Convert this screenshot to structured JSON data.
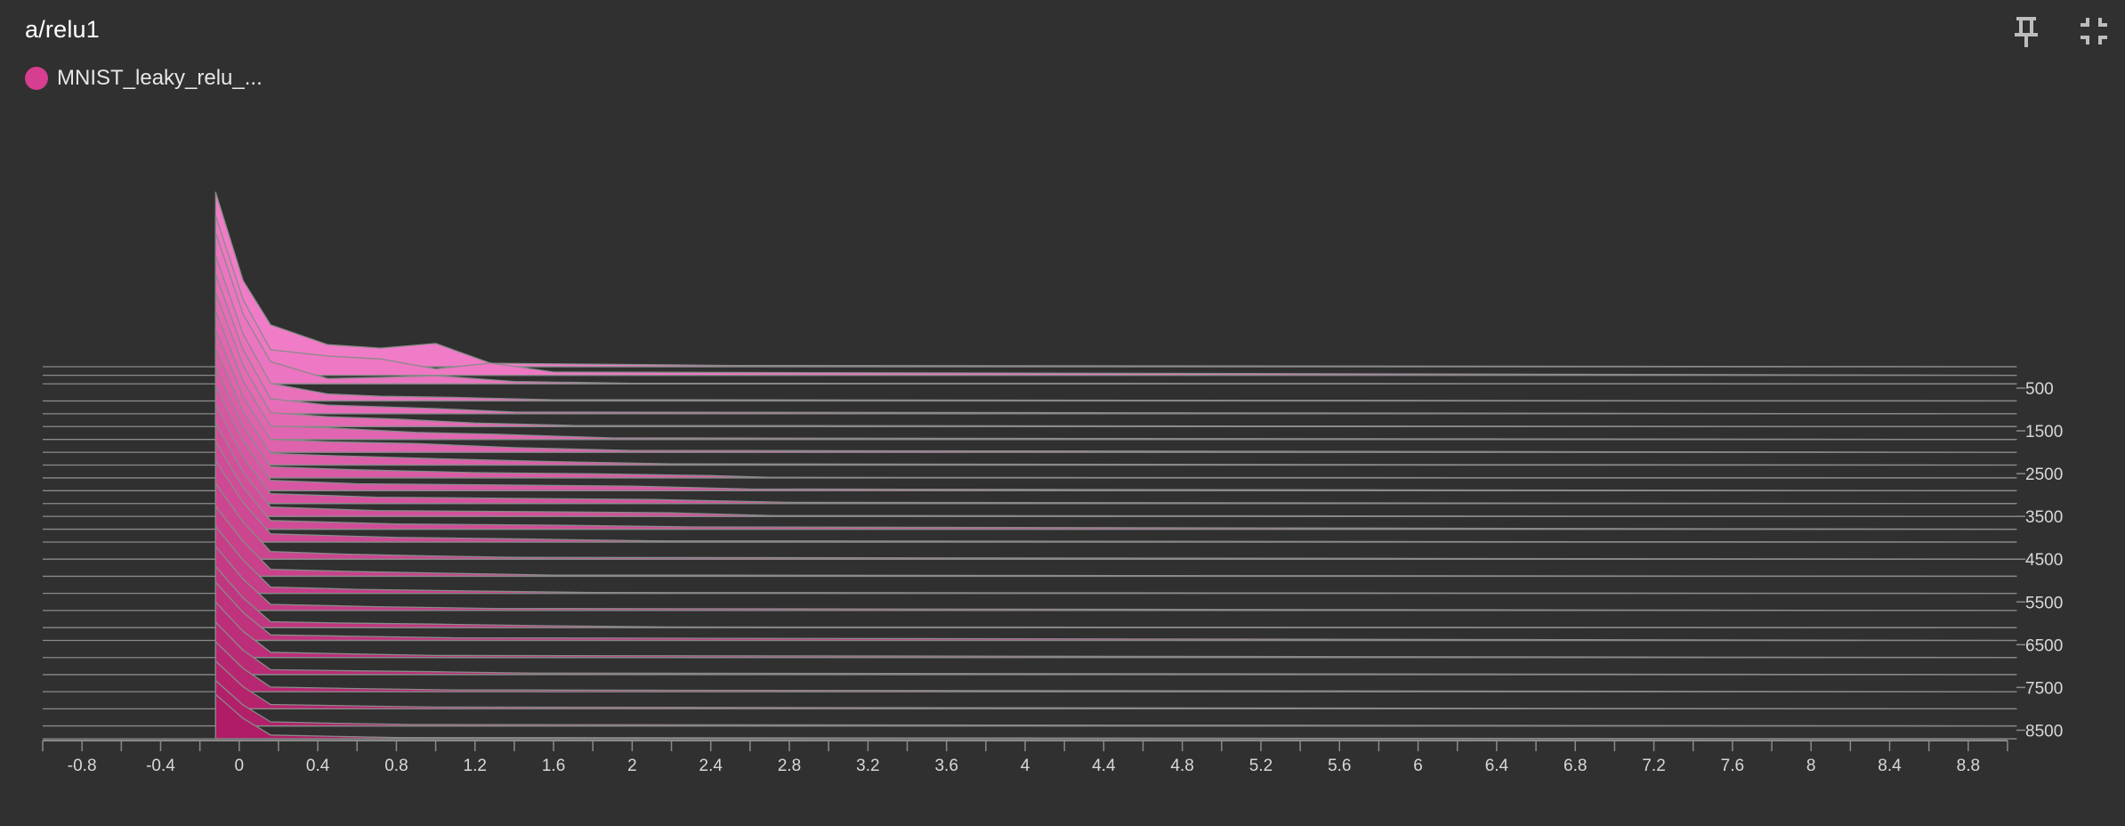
{
  "card": {
    "title": "a/relu1",
    "legend_label": "MNIST_leaky_relu_...",
    "legend_color": "#d63e8f"
  },
  "toolbar": {
    "pin_icon": "pin-icon",
    "fullscreen_exit_icon": "fullscreen-exit-icon"
  },
  "chart_data": {
    "type": "histogram",
    "mode": "offset",
    "xlim": [
      -1.0,
      9.0
    ],
    "x_ticks": [
      -0.8,
      -0.4,
      0,
      0.4,
      0.8,
      1.2,
      1.6,
      2,
      2.4,
      2.8,
      3.2,
      3.6,
      4,
      4.4,
      4.8,
      5.2,
      5.6,
      6,
      6.4,
      6.8,
      7.2,
      7.6,
      8,
      8.4,
      8.8
    ],
    "x_tick_labels": [
      "-0.8",
      "-0.4",
      "0",
      "0.4",
      "0.8",
      "1.2",
      "1.6",
      "2",
      "2.4",
      "2.8",
      "3.2",
      "3.6",
      "4",
      "4.4",
      "4.8",
      "5.2",
      "5.6",
      "6",
      "6.4",
      "6.8",
      "7.2",
      "7.6",
      "8",
      "8.4",
      "8.8"
    ],
    "steps_range": [
      0,
      8700
    ],
    "step_ticks": [
      500,
      1500,
      2500,
      3500,
      4500,
      5500,
      6500,
      7500,
      8500
    ],
    "step_tick_labels": [
      "500",
      "1500",
      "2500",
      "3500",
      "4500",
      "5500",
      "6500",
      "7500",
      "8500"
    ],
    "colors": {
      "back": "#f07cc7",
      "front": "#b01c66",
      "outline": "#8a8a8a"
    },
    "series": [
      {
        "step": 0,
        "points": [
          [
            -0.12,
            3000
          ],
          [
            0.02,
            1480
          ],
          [
            0.16,
            720
          ],
          [
            0.45,
            380
          ],
          [
            0.72,
            320
          ],
          [
            1.0,
            400
          ],
          [
            1.28,
            60
          ],
          [
            2.5,
            22
          ],
          [
            9.0,
            0
          ]
        ]
      },
      {
        "step": 200,
        "points": [
          [
            -0.12,
            2750
          ],
          [
            0.02,
            1300
          ],
          [
            0.16,
            440
          ],
          [
            0.45,
            330
          ],
          [
            0.72,
            280
          ],
          [
            1.0,
            110
          ],
          [
            1.28,
            210
          ],
          [
            1.6,
            55
          ],
          [
            9.0,
            0
          ]
        ]
      },
      {
        "step": 400,
        "points": [
          [
            -0.12,
            2600
          ],
          [
            0.02,
            1200
          ],
          [
            0.16,
            380
          ],
          [
            0.45,
            90
          ],
          [
            0.72,
            110
          ],
          [
            1.0,
            140
          ],
          [
            1.4,
            40
          ],
          [
            2.0,
            10
          ],
          [
            9.0,
            0
          ]
        ]
      },
      {
        "step": 800,
        "points": [
          [
            -0.12,
            2500
          ],
          [
            0.02,
            1150
          ],
          [
            0.16,
            300
          ],
          [
            0.45,
            120
          ],
          [
            0.72,
            80
          ],
          [
            1.1,
            60
          ],
          [
            1.6,
            20
          ],
          [
            9.0,
            0
          ]
        ]
      },
      {
        "step": 1100,
        "points": [
          [
            -0.12,
            2400
          ],
          [
            0.02,
            1100
          ],
          [
            0.16,
            260
          ],
          [
            0.45,
            150
          ],
          [
            0.72,
            120
          ],
          [
            1.0,
            90
          ],
          [
            1.4,
            30
          ],
          [
            9.0,
            0
          ]
        ]
      },
      {
        "step": 1400,
        "points": [
          [
            -0.12,
            2300
          ],
          [
            0.02,
            1050
          ],
          [
            0.16,
            240
          ],
          [
            0.45,
            170
          ],
          [
            0.8,
            130
          ],
          [
            1.2,
            60
          ],
          [
            1.7,
            20
          ],
          [
            9.0,
            0
          ]
        ]
      },
      {
        "step": 1700,
        "points": [
          [
            -0.12,
            2200
          ],
          [
            0.02,
            1000
          ],
          [
            0.16,
            230
          ],
          [
            0.45,
            200
          ],
          [
            0.9,
            120
          ],
          [
            1.3,
            90
          ],
          [
            1.9,
            25
          ],
          [
            9.0,
            0
          ]
        ]
      },
      {
        "step": 2000,
        "points": [
          [
            -0.12,
            2100
          ],
          [
            0.02,
            950
          ],
          [
            0.16,
            220
          ],
          [
            0.45,
            180
          ],
          [
            0.9,
            150
          ],
          [
            1.4,
            80
          ],
          [
            2.0,
            30
          ],
          [
            9.0,
            0
          ]
        ]
      },
      {
        "step": 2300,
        "points": [
          [
            -0.12,
            2000
          ],
          [
            0.02,
            920
          ],
          [
            0.16,
            200
          ],
          [
            0.5,
            160
          ],
          [
            1.0,
            110
          ],
          [
            1.6,
            60
          ],
          [
            2.2,
            20
          ],
          [
            9.0,
            0
          ]
        ]
      },
      {
        "step": 2600,
        "points": [
          [
            -0.12,
            1900
          ],
          [
            0.02,
            880
          ],
          [
            0.16,
            190
          ],
          [
            0.6,
            140
          ],
          [
            1.2,
            90
          ],
          [
            1.8,
            70
          ],
          [
            2.4,
            40
          ],
          [
            2.7,
            10
          ],
          [
            9.0,
            0
          ]
        ]
      },
      {
        "step": 2900,
        "points": [
          [
            -0.12,
            1800
          ],
          [
            0.02,
            850
          ],
          [
            0.16,
            180
          ],
          [
            0.6,
            120
          ],
          [
            1.3,
            100
          ],
          [
            2.0,
            80
          ],
          [
            2.6,
            30
          ],
          [
            9.0,
            0
          ]
        ]
      },
      {
        "step": 3200,
        "points": [
          [
            -0.12,
            1700
          ],
          [
            0.02,
            800
          ],
          [
            0.16,
            170
          ],
          [
            0.7,
            110
          ],
          [
            1.4,
            90
          ],
          [
            2.1,
            70
          ],
          [
            2.8,
            20
          ],
          [
            9.0,
            0
          ]
        ]
      },
      {
        "step": 3500,
        "points": [
          [
            -0.12,
            1600
          ],
          [
            0.02,
            760
          ],
          [
            0.16,
            160
          ],
          [
            0.7,
            100
          ],
          [
            1.5,
            80
          ],
          [
            2.2,
            60
          ],
          [
            2.7,
            15
          ],
          [
            9.0,
            0
          ]
        ]
      },
      {
        "step": 3800,
        "points": [
          [
            -0.12,
            1500
          ],
          [
            0.02,
            720
          ],
          [
            0.16,
            150
          ],
          [
            0.8,
            90
          ],
          [
            1.6,
            70
          ],
          [
            2.3,
            40
          ],
          [
            9.0,
            0
          ]
        ]
      },
      {
        "step": 4100,
        "points": [
          [
            -0.12,
            1400
          ],
          [
            0.02,
            680
          ],
          [
            0.16,
            140
          ],
          [
            0.8,
            80
          ],
          [
            1.5,
            50
          ],
          [
            2.1,
            20
          ],
          [
            9.0,
            0
          ]
        ]
      },
      {
        "step": 4500,
        "points": [
          [
            -0.12,
            1300
          ],
          [
            0.02,
            640
          ],
          [
            0.16,
            130
          ],
          [
            0.5,
            90
          ],
          [
            0.9,
            60
          ],
          [
            1.4,
            30
          ],
          [
            9.0,
            0
          ]
        ]
      },
      {
        "step": 4900,
        "points": [
          [
            -0.12,
            1200
          ],
          [
            0.02,
            600
          ],
          [
            0.16,
            120
          ],
          [
            0.6,
            80
          ],
          [
            1.1,
            50
          ],
          [
            1.6,
            20
          ],
          [
            9.0,
            0
          ]
        ]
      },
      {
        "step": 5300,
        "points": [
          [
            -0.12,
            1150
          ],
          [
            0.02,
            570
          ],
          [
            0.16,
            110
          ],
          [
            0.6,
            70
          ],
          [
            1.2,
            40
          ],
          [
            1.8,
            15
          ],
          [
            9.0,
            0
          ]
        ]
      },
      {
        "step": 5700,
        "points": [
          [
            -0.12,
            1100
          ],
          [
            0.02,
            540
          ],
          [
            0.16,
            105
          ],
          [
            0.7,
            65
          ],
          [
            1.3,
            35
          ],
          [
            9.0,
            0
          ]
        ]
      },
      {
        "step": 6100,
        "points": [
          [
            -0.12,
            1050
          ],
          [
            0.02,
            510
          ],
          [
            0.16,
            100
          ],
          [
            0.5,
            80
          ],
          [
            1.0,
            60
          ],
          [
            1.6,
            30
          ],
          [
            2.2,
            10
          ],
          [
            9.0,
            0
          ]
        ]
      },
      {
        "step": 6400,
        "points": [
          [
            -0.12,
            1000
          ],
          [
            0.02,
            480
          ],
          [
            0.16,
            95
          ],
          [
            0.6,
            70
          ],
          [
            1.1,
            45
          ],
          [
            9.0,
            0
          ]
        ]
      },
      {
        "step": 6800,
        "points": [
          [
            -0.12,
            950
          ],
          [
            0.02,
            450
          ],
          [
            0.16,
            90
          ],
          [
            0.6,
            60
          ],
          [
            1.0,
            35
          ],
          [
            9.0,
            0
          ]
        ]
      },
      {
        "step": 7200,
        "points": [
          [
            -0.12,
            900
          ],
          [
            0.02,
            420
          ],
          [
            0.16,
            85
          ],
          [
            0.5,
            70
          ],
          [
            1.0,
            50
          ],
          [
            1.5,
            25
          ],
          [
            9.0,
            0
          ]
        ]
      },
      {
        "step": 7600,
        "points": [
          [
            -0.12,
            860
          ],
          [
            0.02,
            400
          ],
          [
            0.16,
            80
          ],
          [
            0.6,
            55
          ],
          [
            1.1,
            30
          ],
          [
            9.0,
            0
          ]
        ]
      },
      {
        "step": 8000,
        "points": [
          [
            -0.12,
            820
          ],
          [
            0.02,
            380
          ],
          [
            0.16,
            75
          ],
          [
            0.6,
            50
          ],
          [
            1.0,
            30
          ],
          [
            9.0,
            0
          ]
        ]
      },
      {
        "step": 8400,
        "points": [
          [
            -0.12,
            780
          ],
          [
            0.02,
            360
          ],
          [
            0.16,
            70
          ],
          [
            0.5,
            45
          ],
          [
            0.9,
            25
          ],
          [
            9.0,
            0
          ]
        ]
      },
      {
        "step": 8700,
        "points": [
          [
            -0.12,
            760
          ],
          [
            0.02,
            350
          ],
          [
            0.16,
            65
          ],
          [
            0.5,
            40
          ],
          [
            0.8,
            20
          ],
          [
            9.0,
            0
          ]
        ]
      }
    ]
  }
}
